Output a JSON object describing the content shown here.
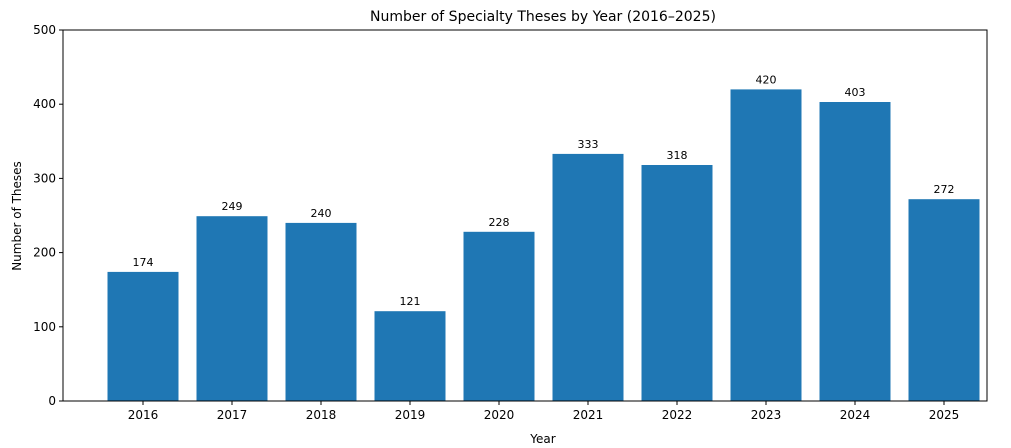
{
  "chart_data": {
    "type": "bar",
    "title": "Number of Specialty Theses by Year (2016–2025)",
    "xlabel": "Year",
    "ylabel": "Number of Theses",
    "categories": [
      "2016",
      "2017",
      "2018",
      "2019",
      "2020",
      "2021",
      "2022",
      "2023",
      "2024",
      "2025"
    ],
    "values": [
      174,
      249,
      240,
      121,
      228,
      333,
      318,
      420,
      403,
      272
    ],
    "ylim": [
      0,
      500
    ],
    "yticks": [
      0,
      100,
      200,
      300,
      400,
      500
    ],
    "grid": false,
    "legend": "none",
    "colors": {
      "bar": "#1f77b4"
    }
  }
}
